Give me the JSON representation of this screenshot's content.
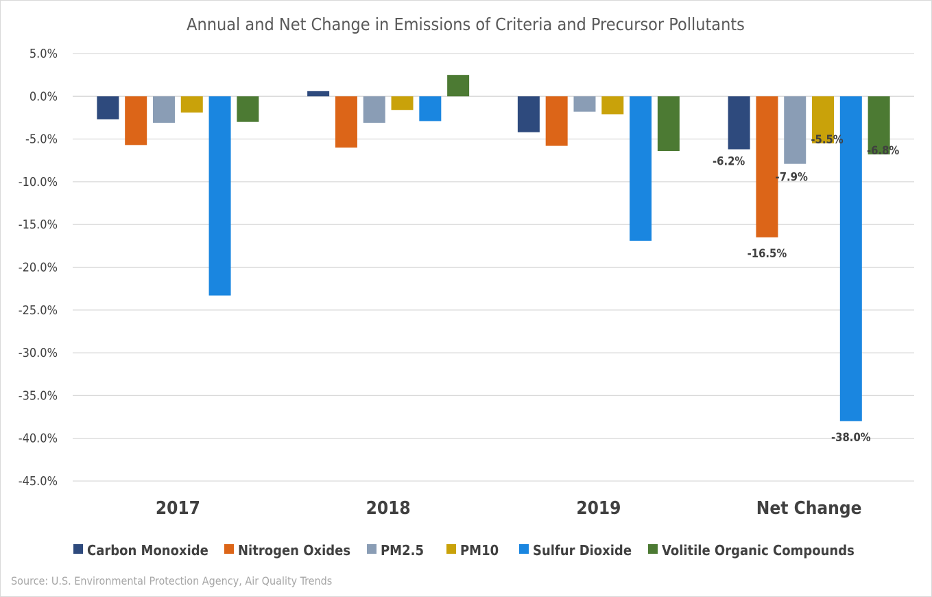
{
  "chart_data": {
    "type": "bar",
    "title": "Annual and Net Change in Emissions of Criteria and Precursor Pollutants",
    "categories": [
      "2017",
      "2018",
      "2019",
      "Net Change"
    ],
    "series": [
      {
        "name": "Carbon Monoxide",
        "color": "#2e4a7d",
        "values": [
          -2.7,
          0.6,
          -4.2,
          -6.2
        ]
      },
      {
        "name": "Nitrogen Oxides",
        "color": "#dc6518",
        "values": [
          -5.7,
          -6.0,
          -5.8,
          -16.5
        ]
      },
      {
        "name": "PM2.5",
        "color": "#8a9db5",
        "values": [
          -3.1,
          -3.1,
          -1.8,
          -7.9
        ]
      },
      {
        "name": "PM10",
        "color": "#c9a20a",
        "values": [
          -1.9,
          -1.6,
          -2.1,
          -5.5
        ]
      },
      {
        "name": "Sulfur Dioxide",
        "color": "#1a86e0",
        "values": [
          -23.3,
          -2.9,
          -16.9,
          -38.0
        ]
      },
      {
        "name": "Volitile Organic Compounds",
        "color": "#4c7a33",
        "values": [
          -3.0,
          2.5,
          -6.4,
          -6.8
        ]
      }
    ],
    "data_labels": {
      "category": "Net Change",
      "labels": [
        "-6.2%",
        "-16.5%",
        "-7.9%",
        "-5.5%",
        "-38.0%",
        "-6.8%"
      ]
    },
    "ylim": [
      -45,
      5
    ],
    "yticks": [
      5,
      0,
      -5,
      -10,
      -15,
      -20,
      -25,
      -30,
      -35,
      -40,
      -45
    ],
    "ytick_labels": [
      "5.0%",
      "0.0%",
      "-5.0%",
      "-10.0%",
      "-15.0%",
      "-20.0%",
      "-25.0%",
      "-30.0%",
      "-35.0%",
      "-40.0%",
      "-45.0%"
    ],
    "grid": true,
    "legend_position": "bottom",
    "xlabel": "",
    "ylabel": ""
  },
  "source": "Source: U.S. Environmental Protection Agency, Air Quality Trends"
}
